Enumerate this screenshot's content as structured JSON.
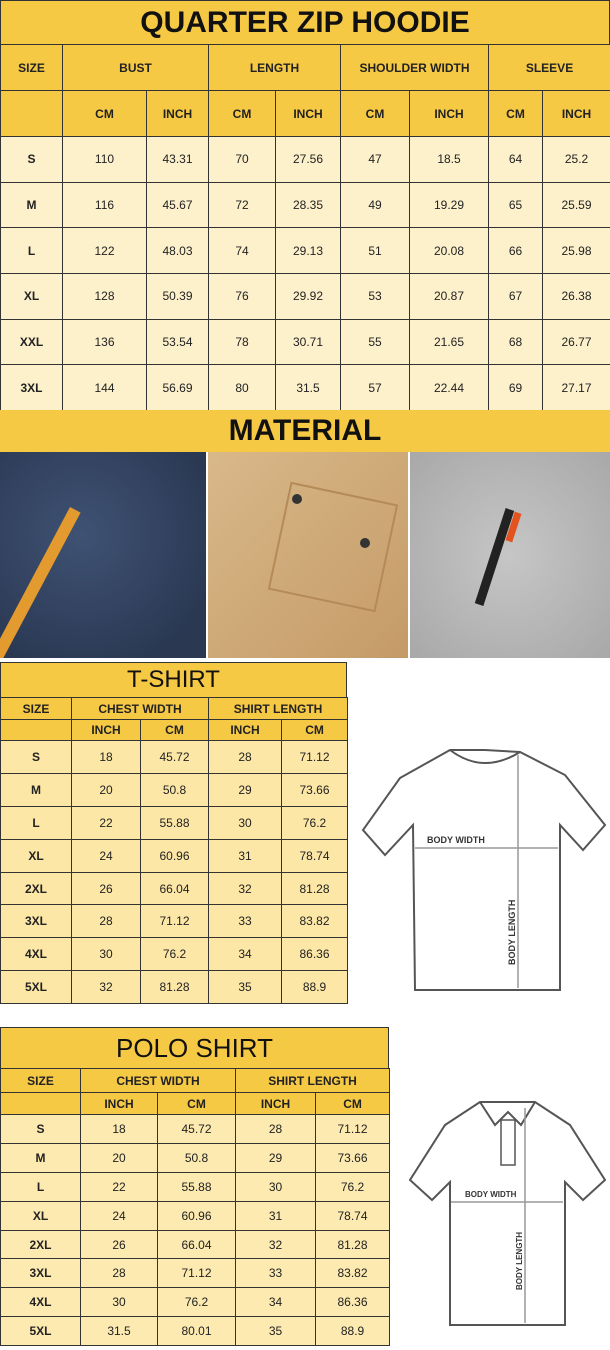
{
  "hoodie": {
    "title": "QUARTER ZIP HOODIE",
    "size_label": "SIZE",
    "groups": [
      "BUST",
      "LENGTH",
      "SHOULDER WIDTH",
      "SLEEVE"
    ],
    "units": [
      "CM",
      "INCH",
      "CM",
      "INCH",
      "CM",
      "INCH",
      "CM",
      "INCH"
    ],
    "rows": [
      [
        "S",
        "110",
        "43.31",
        "70",
        "27.56",
        "47",
        "18.5",
        "64",
        "25.2"
      ],
      [
        "M",
        "116",
        "45.67",
        "72",
        "28.35",
        "49",
        "19.29",
        "65",
        "25.59"
      ],
      [
        "L",
        "122",
        "48.03",
        "74",
        "29.13",
        "51",
        "20.08",
        "66",
        "25.98"
      ],
      [
        "XL",
        "128",
        "50.39",
        "76",
        "29.92",
        "53",
        "20.87",
        "67",
        "26.38"
      ],
      [
        "XXL",
        "136",
        "53.54",
        "78",
        "30.71",
        "55",
        "21.65",
        "68",
        "26.77"
      ],
      [
        "3XL",
        "144",
        "56.69",
        "80",
        "31.5",
        "57",
        "22.44",
        "69",
        "27.17"
      ]
    ]
  },
  "material": {
    "title": "MATERIAL"
  },
  "tshirt": {
    "title": "T-SHIRT",
    "size_label": "SIZE",
    "groups": [
      "CHEST WIDTH",
      "SHIRT LENGTH"
    ],
    "units": [
      "INCH",
      "CM",
      "INCH",
      "CM"
    ],
    "rows": [
      [
        "S",
        "18",
        "45.72",
        "28",
        "71.12"
      ],
      [
        "M",
        "20",
        "50.8",
        "29",
        "73.66"
      ],
      [
        "L",
        "22",
        "55.88",
        "30",
        "76.2"
      ],
      [
        "XL",
        "24",
        "60.96",
        "31",
        "78.74"
      ],
      [
        "2XL",
        "26",
        "66.04",
        "32",
        "81.28"
      ],
      [
        "3XL",
        "28",
        "71.12",
        "33",
        "83.82"
      ],
      [
        "4XL",
        "30",
        "76.2",
        "34",
        "86.36"
      ],
      [
        "5XL",
        "32",
        "81.28",
        "35",
        "88.9"
      ]
    ],
    "diagram": {
      "width_label": "BODY WIDTH",
      "length_label": "BODY LENGTH"
    }
  },
  "polo": {
    "title": "POLO SHIRT",
    "size_label": "SIZE",
    "groups": [
      "CHEST WIDTH",
      "SHIRT LENGTH"
    ],
    "units": [
      "INCH",
      "CM",
      "INCH",
      "CM"
    ],
    "rows": [
      [
        "S",
        "18",
        "45.72",
        "28",
        "71.12"
      ],
      [
        "M",
        "20",
        "50.8",
        "29",
        "73.66"
      ],
      [
        "L",
        "22",
        "55.88",
        "30",
        "76.2"
      ],
      [
        "XL",
        "24",
        "60.96",
        "31",
        "78.74"
      ],
      [
        "2XL",
        "26",
        "66.04",
        "32",
        "81.28"
      ],
      [
        "3XL",
        "28",
        "71.12",
        "33",
        "83.82"
      ],
      [
        "4XL",
        "30",
        "76.2",
        "34",
        "86.36"
      ],
      [
        "5XL",
        "31.5",
        "80.01",
        "35",
        "88.9"
      ]
    ],
    "diagram": {
      "width_label": "BODY WIDTH",
      "length_label": "BODY LENGTH"
    }
  }
}
